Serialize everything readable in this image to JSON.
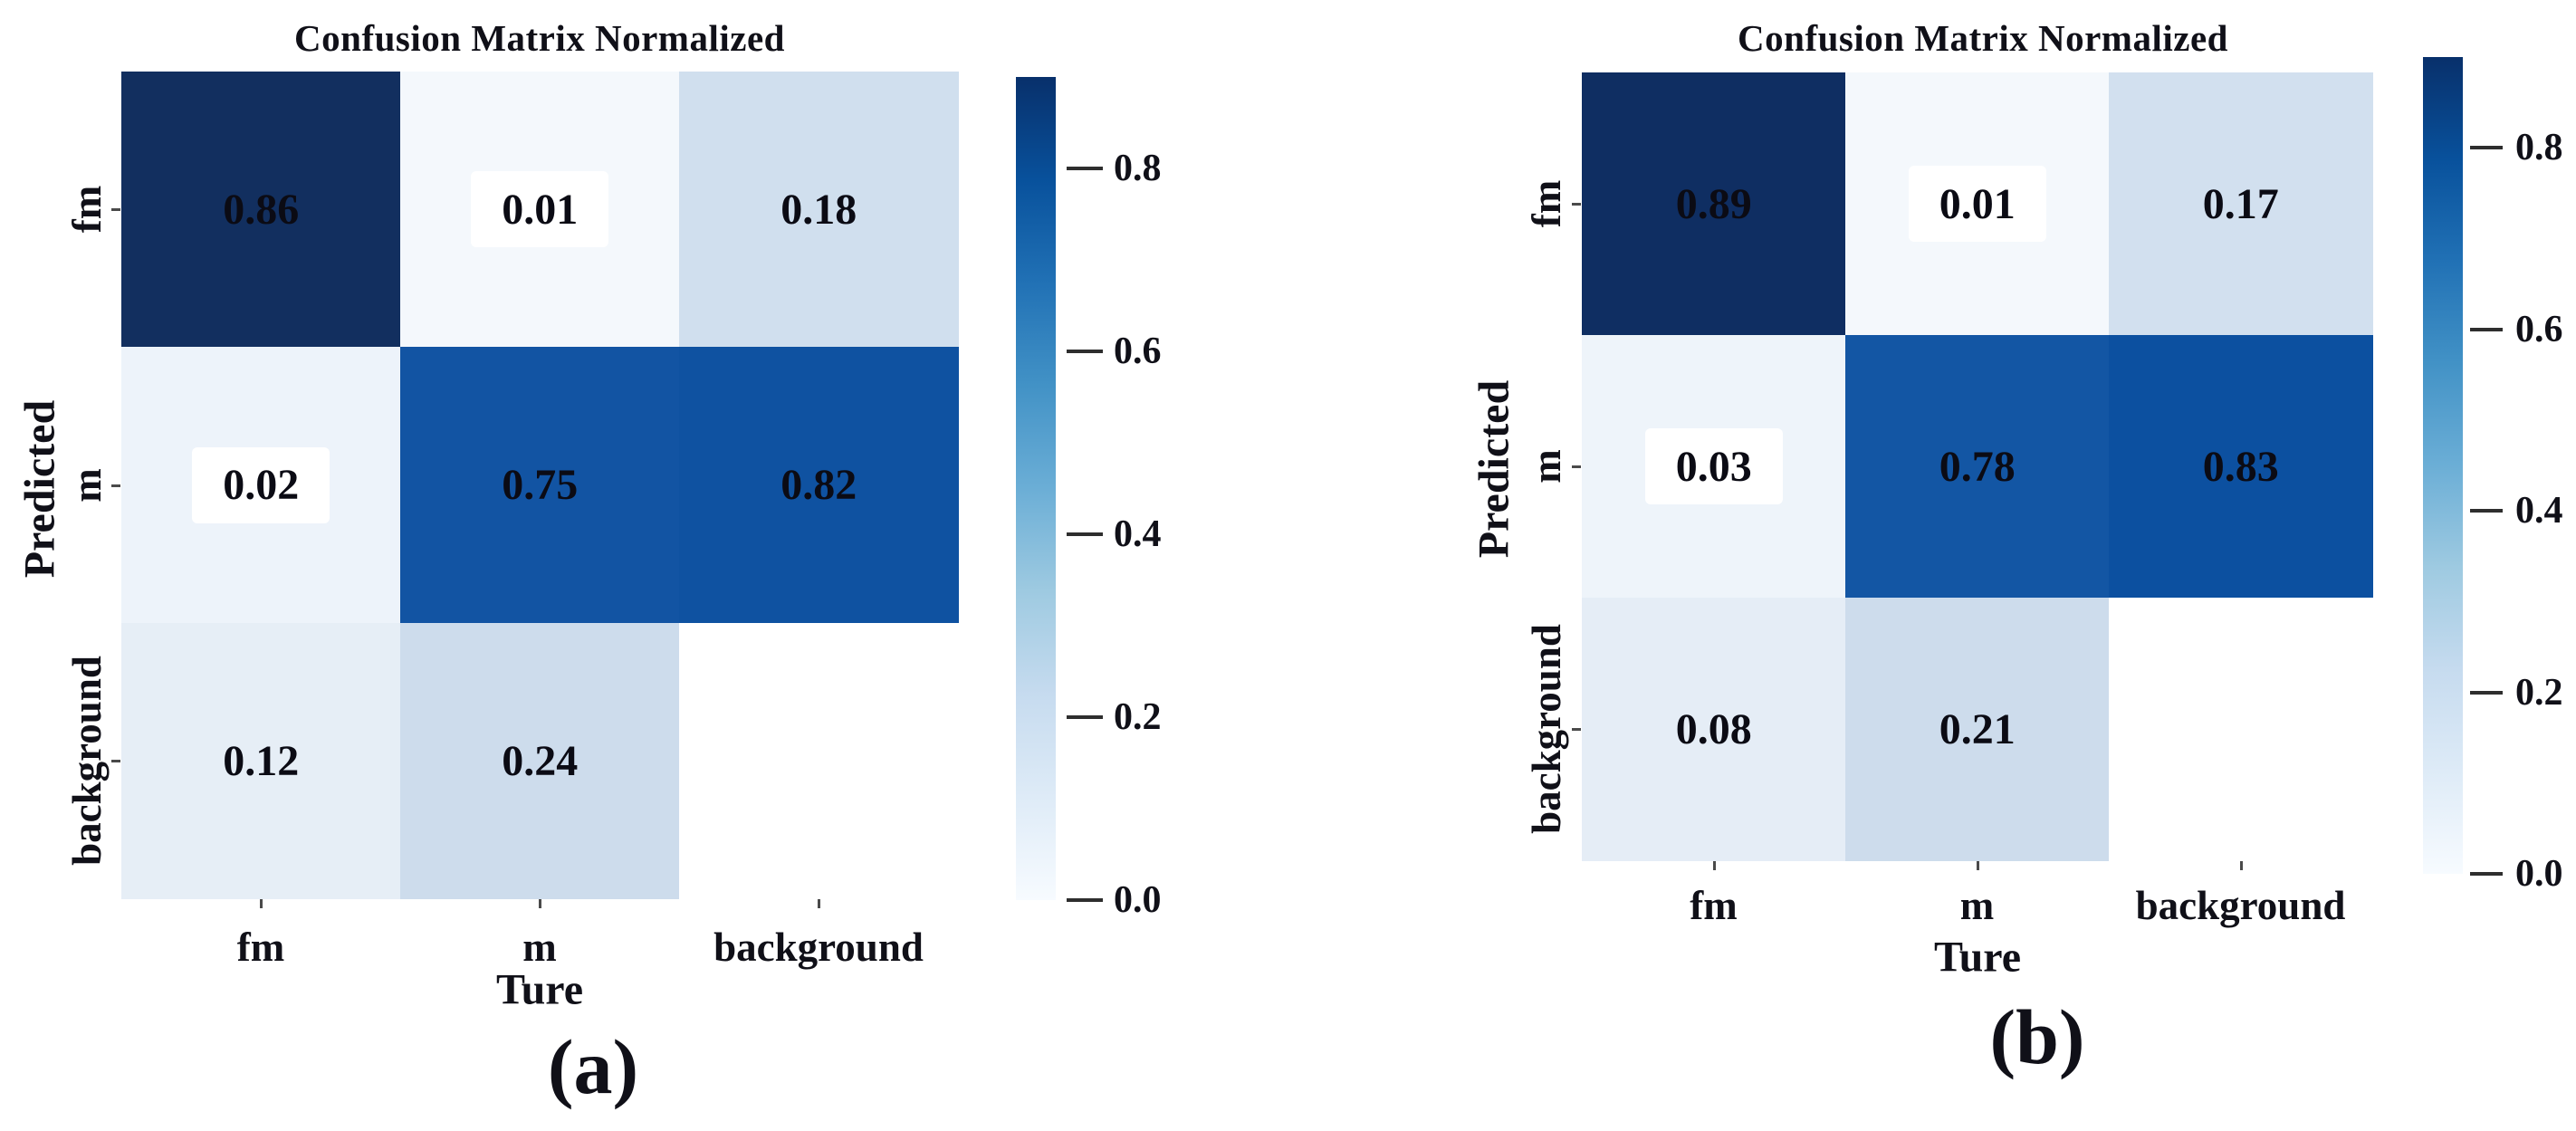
{
  "figure": {
    "panels": [
      {
        "label": "(a)",
        "title": "Confusion Matrix Normalized",
        "x_axis_label": "Ture",
        "y_axis_label": "Predicted",
        "x_categories": [
          "fm",
          "m",
          "background"
        ],
        "y_categories": [
          "fm",
          "m",
          "background"
        ],
        "cells": [
          {
            "value": "0.86",
            "color": "#122f5f",
            "boxed": false
          },
          {
            "value": "0.01",
            "color": "#f4f8fc",
            "boxed": true
          },
          {
            "value": "0.18",
            "color": "#d0dfee",
            "boxed": false
          },
          {
            "value": "0.02",
            "color": "#edf3fa",
            "boxed": true
          },
          {
            "value": "0.75",
            "color": "#1254a3",
            "boxed": false
          },
          {
            "value": "0.82",
            "color": "#0f52a1",
            "boxed": false
          },
          {
            "value": "0.12",
            "color": "#e6eef6",
            "boxed": false
          },
          {
            "value": "0.24",
            "color": "#cddcec",
            "boxed": false
          },
          {
            "value": null,
            "color": "#ffffff",
            "boxed": false
          }
        ],
        "colorbar": {
          "ticks": [
            "0.8",
            "0.6",
            "0.4",
            "0.2",
            "0.0"
          ],
          "vmin": 0.0,
          "vmax": 0.9,
          "gradient_top_to_bottom": [
            "#08306b",
            "#08519c",
            "#2171b5",
            "#4292c6",
            "#6baed6",
            "#9ecae1",
            "#c6dbef",
            "#deebf7",
            "#f7fbff"
          ]
        }
      },
      {
        "label": "(b)",
        "title": "Confusion Matrix Normalized",
        "x_axis_label": "Ture",
        "y_axis_label": "Predicted",
        "x_categories": [
          "fm",
          "m",
          "background"
        ],
        "y_categories": [
          "fm",
          "m",
          "background"
        ],
        "cells": [
          {
            "value": "0.89",
            "color": "#0f2e62",
            "boxed": false
          },
          {
            "value": "0.01",
            "color": "#f4f8fc",
            "boxed": true
          },
          {
            "value": "0.17",
            "color": "#d2e0ef",
            "boxed": false
          },
          {
            "value": "0.03",
            "color": "#eef4fa",
            "boxed": true
          },
          {
            "value": "0.78",
            "color": "#1356a4",
            "boxed": false
          },
          {
            "value": "0.83",
            "color": "#0c50a0",
            "boxed": false
          },
          {
            "value": "0.08",
            "color": "#e5edf6",
            "boxed": false
          },
          {
            "value": "0.21",
            "color": "#cddcec",
            "boxed": false
          },
          {
            "value": null,
            "color": "#ffffff",
            "boxed": false
          }
        ],
        "colorbar": {
          "ticks": [
            "0.8",
            "0.6",
            "0.4",
            "0.2",
            "0.0"
          ],
          "vmin": 0.0,
          "vmax": 0.9,
          "gradient_top_to_bottom": [
            "#08306b",
            "#08519c",
            "#2171b5",
            "#4292c6",
            "#6baed6",
            "#9ecae1",
            "#c6dbef",
            "#deebf7",
            "#f7fbff"
          ]
        }
      }
    ],
    "colors": {
      "background": "#ffffff",
      "ink": "#101018",
      "tick": "#2e2e2e",
      "value_box": "#ffffff"
    }
  },
  "chart_data": [
    {
      "type": "heatmap",
      "title": "Confusion Matrix Normalized",
      "xlabel": "Ture",
      "ylabel": "Predicted",
      "x_categories": [
        "fm",
        "m",
        "background"
      ],
      "y_categories": [
        "fm",
        "m",
        "background"
      ],
      "values": [
        [
          0.86,
          0.01,
          0.18
        ],
        [
          0.02,
          0.75,
          0.82
        ],
        [
          0.12,
          0.24,
          null
        ]
      ],
      "vmin": 0.0,
      "vmax": 0.9,
      "colormap": "Blues",
      "colorbar_ticks": [
        0.8,
        0.6,
        0.4,
        0.2,
        0.0
      ],
      "legend_position": "right-colorbar",
      "grid": false,
      "panel_label": "(a)"
    },
    {
      "type": "heatmap",
      "title": "Confusion Matrix Normalized",
      "xlabel": "Ture",
      "ylabel": "Predicted",
      "x_categories": [
        "fm",
        "m",
        "background"
      ],
      "y_categories": [
        "fm",
        "m",
        "background"
      ],
      "values": [
        [
          0.89,
          0.01,
          0.17
        ],
        [
          0.03,
          0.78,
          0.83
        ],
        [
          0.08,
          0.21,
          null
        ]
      ],
      "vmin": 0.0,
      "vmax": 0.9,
      "colormap": "Blues",
      "colorbar_ticks": [
        0.8,
        0.6,
        0.4,
        0.2,
        0.0
      ],
      "legend_position": "right-colorbar",
      "grid": false,
      "panel_label": "(b)"
    }
  ]
}
